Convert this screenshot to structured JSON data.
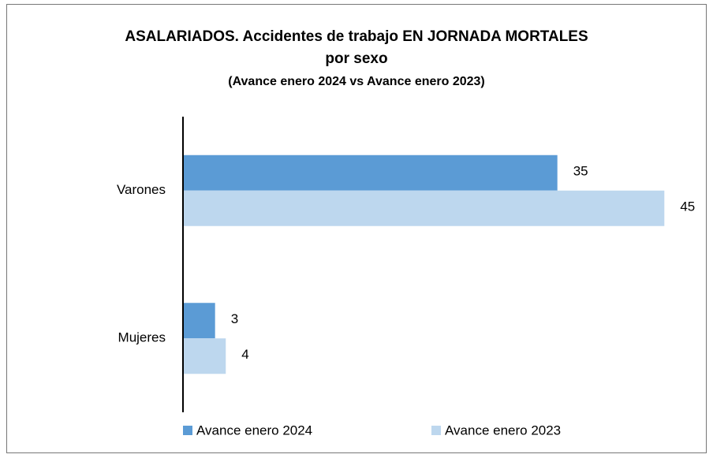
{
  "chart_data": {
    "type": "barh",
    "title": "ASALARIADOS. Accidentes de trabajo EN JORNADA MORTALES",
    "title_line2": "por sexo",
    "subtitle": "(Avance enero 2024 vs Avance enero 2023)",
    "categories": [
      "Varones",
      "Mujeres"
    ],
    "series": [
      {
        "name": "Avance enero 2024",
        "color": "#5b9bd5",
        "values": [
          35,
          3
        ]
      },
      {
        "name": "Avance enero 2023",
        "color": "#bdd7ee",
        "values": [
          45,
          4
        ]
      }
    ],
    "xlim": [
      0,
      48
    ]
  }
}
